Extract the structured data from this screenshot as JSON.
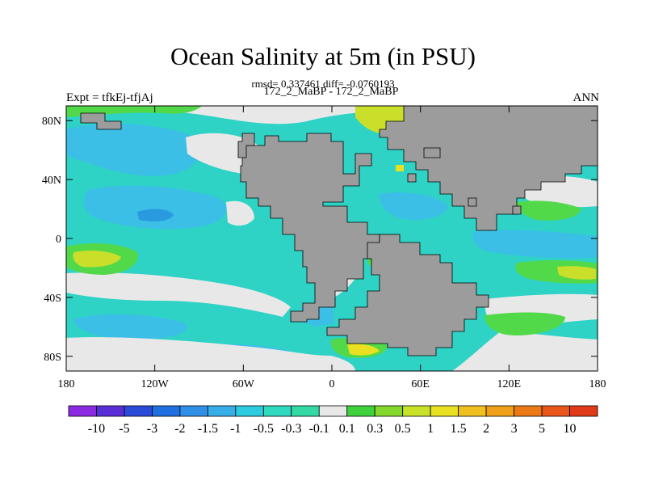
{
  "title": "Ocean Salinity at 5m (in PSU)",
  "stats": "rmsd= 0.337461 diff= -0.0760193",
  "experiment": "Expt = tfkEj-tfjAj",
  "cases": "172_2_MaBP - 172_2_MaBP",
  "season": "ANN",
  "lat_ticks": [
    "80N",
    "40N",
    "0",
    "40S",
    "80S"
  ],
  "lon_ticks": [
    "180",
    "120W",
    "60W",
    "0",
    "60E",
    "120E",
    "180"
  ],
  "colorbar": {
    "labels": [
      "-10",
      "-5",
      "-3",
      "-2",
      "-1.5",
      "-1",
      "-0.5",
      "-0.3",
      "-0.1",
      "0.1",
      "0.3",
      "0.5",
      "1",
      "1.5",
      "2",
      "3",
      "5",
      "10"
    ],
    "colors": [
      "#8a2be2",
      "#5a2ed6",
      "#2a4ad8",
      "#1f6fe0",
      "#2f8fe6",
      "#36aee8",
      "#2ccbe0",
      "#2ed9c0",
      "#32d9a4",
      "#e8e8e8",
      "#3fd13c",
      "#84d82c",
      "#c8e228",
      "#e8e020",
      "#f0c020",
      "#f0a018",
      "#ec7a14",
      "#e8561a",
      "#e03a18"
    ]
  },
  "colors": {
    "land": "#9c9c9c",
    "neutral": "#e8e8e8",
    "fresh_light": "#2ed3c6",
    "fresh_mid": "#3bbfe6",
    "fresh_strong": "#2a9ae0",
    "salty_light": "#52d94a",
    "salty_mid": "#c9df2a",
    "salty_strong": "#f0a018"
  }
}
